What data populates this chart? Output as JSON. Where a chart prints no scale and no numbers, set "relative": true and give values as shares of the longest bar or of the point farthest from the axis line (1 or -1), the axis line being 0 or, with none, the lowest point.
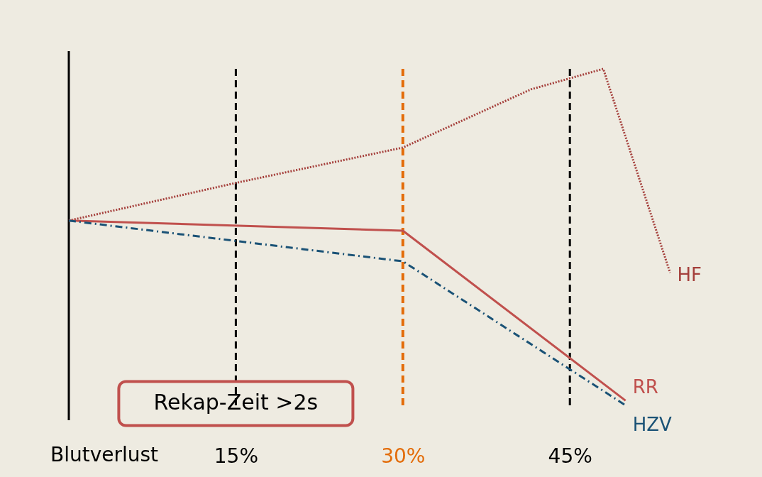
{
  "chart_data": {
    "type": "line",
    "relative": true,
    "xlabel": "Blutverlust",
    "xlim": [
      0,
      62
    ],
    "xticks": [
      {
        "value": 15,
        "label": "15%"
      },
      {
        "value": 30,
        "label": "30%"
      },
      {
        "value": 45,
        "label": "45%"
      }
    ],
    "series": [
      {
        "name": "HF",
        "color": "#a5403c",
        "line_style": "dotted",
        "x": [
          0,
          15,
          30,
          41.5,
          48,
          54
        ],
        "values": [
          0.549,
          0.661,
          0.766,
          0.939,
          1,
          0.394
        ]
      },
      {
        "name": "RR",
        "color": "#c0504d",
        "line_style": "solid",
        "x": [
          0,
          30,
          50
        ],
        "values": [
          0.549,
          0.519,
          0.014
        ]
      },
      {
        "name": "HZV",
        "color": "#1a5276",
        "line_style": "dashed",
        "x": [
          0,
          30,
          50
        ],
        "values": [
          0.549,
          0.428,
          0
        ]
      }
    ],
    "ref_lines": [
      {
        "axis": "x",
        "value": 15,
        "color": "#000000",
        "line_style": "dashed"
      },
      {
        "axis": "x",
        "value": 30,
        "color": "#e36c09",
        "line_style": "dashed"
      },
      {
        "axis": "x",
        "value": 45,
        "color": "#000000",
        "line_style": "dashed"
      }
    ],
    "annotations": [
      {
        "text": "Rekap-Zeit >2s",
        "x": 15,
        "y": 0.115
      }
    ],
    "grid": false,
    "legend": false
  }
}
